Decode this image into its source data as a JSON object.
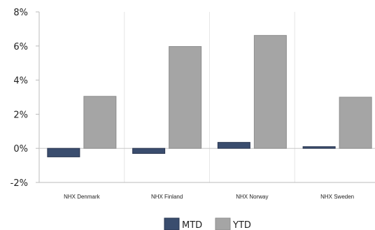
{
  "chart_data": {
    "type": "bar",
    "categories": [
      "NHX Denmark",
      "NHX Finland",
      "NHX Norway",
      "NHX Sweden"
    ],
    "series": [
      {
        "name": "MTD",
        "values": [
          -0.5,
          -0.3,
          0.35,
          0.1
        ],
        "color": "#3a4d6e"
      },
      {
        "name": "YTD",
        "values": [
          3.05,
          5.97,
          6.62,
          3.0
        ],
        "color": "#a5a5a5"
      }
    ],
    "yticks": [
      -2,
      0,
      2,
      4,
      6,
      8
    ],
    "ytick_labels": [
      "-2%",
      "0%",
      "2%",
      "4%",
      "6%",
      "8%"
    ],
    "ylim": [
      -2,
      8
    ],
    "grid": "vertical",
    "legend": "bottom-center",
    "title": "",
    "xlabel": "",
    "ylabel": ""
  }
}
